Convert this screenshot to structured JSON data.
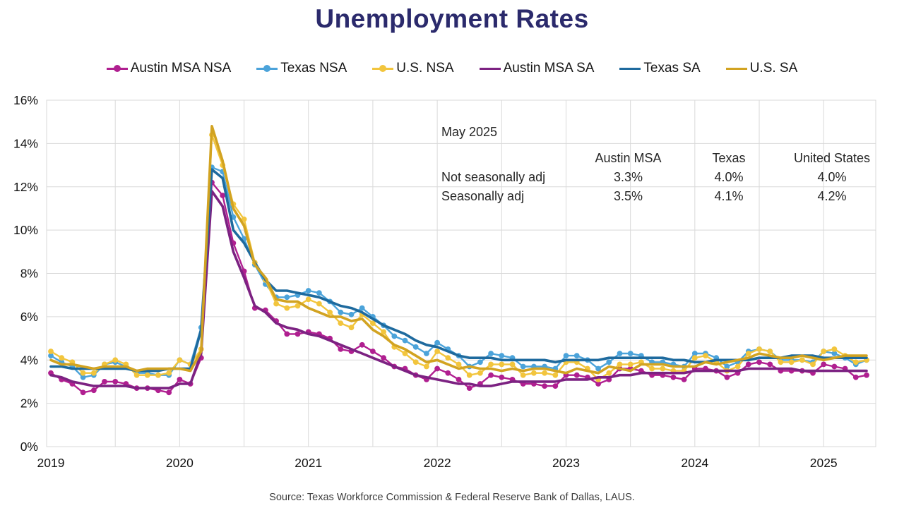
{
  "title": "Unemployment Rates",
  "source": "Source: Texas Workforce Commission & Federal Reserve Bank of Dallas, LAUS.",
  "annotation": {
    "period": "May 2025",
    "columns": [
      "Austin MSA",
      "Texas",
      "United States"
    ],
    "rows": [
      {
        "label": "Not seasonally adj",
        "values": [
          "3.3%",
          "4.0%",
          "4.0%"
        ]
      },
      {
        "label": "Seasonally adj",
        "values": [
          "3.5%",
          "4.1%",
          "4.2%"
        ]
      }
    ]
  },
  "chart_data": {
    "type": "line",
    "title": "Unemployment Rates",
    "x_start": "2019-01",
    "x_end": "2025-05",
    "x_frequency": "monthly",
    "x_tick_labels": [
      "2019",
      "2020",
      "2021",
      "2022",
      "2023",
      "2024",
      "2025"
    ],
    "y_tick_labels": [
      "0%",
      "2%",
      "4%",
      "6%",
      "8%",
      "10%",
      "12%",
      "14%",
      "16%"
    ],
    "ylim": [
      0,
      16
    ],
    "grid": "horizontal every 2%, vertical every 6 months",
    "legend_position": "top",
    "colors": {
      "grid": "#d9d9d9",
      "axis_text": "#141414",
      "title_text": "#2b2a6c"
    },
    "series": [
      {
        "name": "Austin MSA NSA",
        "color": "#b01f90",
        "marker": true,
        "values": [
          3.4,
          3.1,
          2.9,
          2.5,
          2.6,
          3.0,
          3.0,
          2.9,
          2.7,
          2.7,
          2.6,
          2.5,
          3.1,
          2.9,
          4.1,
          12.2,
          11.6,
          9.4,
          8.1,
          6.4,
          6.3,
          5.8,
          5.2,
          5.2,
          5.3,
          5.2,
          5.0,
          4.5,
          4.4,
          4.7,
          4.4,
          4.1,
          3.7,
          3.6,
          3.3,
          3.1,
          3.6,
          3.4,
          3.1,
          2.7,
          2.9,
          3.3,
          3.2,
          3.1,
          2.9,
          2.9,
          2.8,
          2.8,
          3.3,
          3.3,
          3.2,
          2.9,
          3.1,
          3.6,
          3.6,
          3.5,
          3.3,
          3.3,
          3.2,
          3.1,
          3.6,
          3.6,
          3.5,
          3.2,
          3.4,
          3.8,
          3.9,
          3.8,
          3.5,
          3.5,
          3.5,
          3.4,
          3.8,
          3.7,
          3.6,
          3.2,
          3.3
        ]
      },
      {
        "name": "Texas NSA",
        "color": "#4ba3da",
        "marker": true,
        "values": [
          4.2,
          3.9,
          3.7,
          3.2,
          3.3,
          3.8,
          3.9,
          3.7,
          3.4,
          3.4,
          3.3,
          3.3,
          4.0,
          3.8,
          5.5,
          12.9,
          12.7,
          10.6,
          9.6,
          8.4,
          7.5,
          6.9,
          6.9,
          7.0,
          7.2,
          7.1,
          6.7,
          6.2,
          6.1,
          6.4,
          6.0,
          5.6,
          5.1,
          4.9,
          4.6,
          4.3,
          4.8,
          4.5,
          4.2,
          3.7,
          3.9,
          4.3,
          4.2,
          4.1,
          3.7,
          3.7,
          3.7,
          3.6,
          4.2,
          4.2,
          4.0,
          3.6,
          3.9,
          4.3,
          4.3,
          4.2,
          3.9,
          3.9,
          3.8,
          3.7,
          4.3,
          4.3,
          4.1,
          3.7,
          3.9,
          4.4,
          4.5,
          4.4,
          4.0,
          4.0,
          4.0,
          3.9,
          4.4,
          4.3,
          4.1,
          3.8,
          4.0
        ]
      },
      {
        "name": "U.S. NSA",
        "color": "#f2c53d",
        "marker": true,
        "values": [
          4.4,
          4.1,
          3.9,
          3.4,
          3.4,
          3.8,
          4.0,
          3.8,
          3.3,
          3.3,
          3.3,
          3.4,
          4.0,
          3.8,
          4.5,
          14.4,
          13.0,
          11.2,
          10.5,
          8.5,
          7.7,
          6.6,
          6.4,
          6.5,
          6.8,
          6.6,
          6.2,
          5.7,
          5.5,
          6.1,
          5.7,
          5.3,
          4.6,
          4.3,
          3.9,
          3.7,
          4.4,
          4.1,
          3.8,
          3.3,
          3.4,
          3.8,
          3.8,
          3.8,
          3.3,
          3.4,
          3.4,
          3.3,
          3.9,
          3.9,
          3.6,
          3.1,
          3.4,
          3.8,
          3.8,
          3.9,
          3.6,
          3.6,
          3.5,
          3.5,
          4.1,
          4.2,
          3.9,
          3.5,
          3.7,
          4.3,
          4.5,
          4.4,
          3.9,
          3.9,
          4.0,
          3.8,
          4.4,
          4.5,
          4.2,
          3.9,
          4.0
        ]
      },
      {
        "name": "Austin MSA SA",
        "color": "#7c2282",
        "marker": false,
        "values": [
          3.3,
          3.2,
          3.0,
          2.9,
          2.8,
          2.8,
          2.8,
          2.8,
          2.7,
          2.7,
          2.7,
          2.7,
          2.9,
          2.9,
          4.3,
          11.8,
          11.1,
          9.0,
          7.8,
          6.5,
          6.2,
          5.7,
          5.5,
          5.4,
          5.2,
          5.1,
          4.9,
          4.7,
          4.5,
          4.3,
          4.1,
          3.9,
          3.7,
          3.5,
          3.3,
          3.2,
          3.1,
          3.0,
          2.9,
          2.9,
          2.8,
          2.8,
          2.9,
          3.0,
          3.0,
          3.0,
          3.0,
          3.0,
          3.1,
          3.1,
          3.1,
          3.2,
          3.2,
          3.3,
          3.3,
          3.4,
          3.4,
          3.4,
          3.4,
          3.4,
          3.5,
          3.5,
          3.5,
          3.5,
          3.5,
          3.6,
          3.6,
          3.6,
          3.6,
          3.6,
          3.5,
          3.5,
          3.5,
          3.5,
          3.5,
          3.5,
          3.5
        ]
      },
      {
        "name": "Texas SA",
        "color": "#1e6a9e",
        "marker": false,
        "values": [
          3.7,
          3.7,
          3.6,
          3.6,
          3.6,
          3.6,
          3.6,
          3.6,
          3.5,
          3.5,
          3.5,
          3.6,
          3.6,
          3.6,
          5.4,
          12.8,
          12.4,
          10.0,
          9.4,
          8.5,
          7.7,
          7.2,
          7.2,
          7.1,
          7.0,
          6.9,
          6.7,
          6.5,
          6.4,
          6.2,
          5.9,
          5.6,
          5.4,
          5.2,
          4.9,
          4.7,
          4.6,
          4.4,
          4.2,
          4.1,
          4.1,
          4.1,
          4.0,
          4.0,
          4.0,
          4.0,
          4.0,
          3.9,
          4.0,
          4.0,
          4.0,
          4.0,
          4.1,
          4.1,
          4.1,
          4.1,
          4.1,
          4.1,
          4.0,
          4.0,
          3.9,
          3.9,
          4.0,
          4.0,
          4.0,
          4.0,
          4.1,
          4.1,
          4.1,
          4.2,
          4.2,
          4.2,
          4.1,
          4.1,
          4.1,
          4.1,
          4.1
        ]
      },
      {
        "name": "U.S. SA",
        "color": "#d2a321",
        "marker": false,
        "values": [
          4.0,
          3.8,
          3.8,
          3.7,
          3.6,
          3.7,
          3.7,
          3.7,
          3.5,
          3.6,
          3.6,
          3.6,
          3.6,
          3.5,
          4.4,
          14.8,
          13.2,
          11.0,
          10.2,
          8.4,
          7.8,
          6.8,
          6.7,
          6.7,
          6.4,
          6.2,
          6.0,
          6.0,
          5.8,
          5.9,
          5.4,
          5.1,
          4.7,
          4.5,
          4.2,
          3.9,
          4.0,
          3.8,
          3.6,
          3.7,
          3.6,
          3.6,
          3.5,
          3.6,
          3.5,
          3.6,
          3.6,
          3.5,
          3.4,
          3.6,
          3.5,
          3.4,
          3.7,
          3.6,
          3.5,
          3.8,
          3.8,
          3.8,
          3.7,
          3.7,
          3.7,
          3.9,
          3.8,
          3.9,
          4.0,
          4.1,
          4.3,
          4.2,
          4.1,
          4.1,
          4.2,
          4.1,
          4.0,
          4.1,
          4.2,
          4.2,
          4.2
        ]
      }
    ]
  }
}
